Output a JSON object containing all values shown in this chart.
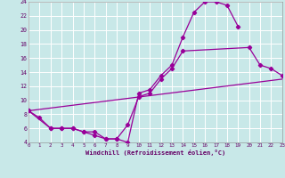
{
  "bg_color": "#c8e8e8",
  "grid_color": "#ffffff",
  "line_color": "#990099",
  "xlabel": "Windchill (Refroidissement éolien,°C)",
  "xlim": [
    0,
    23
  ],
  "ylim": [
    4,
    24
  ],
  "xticks": [
    0,
    1,
    2,
    3,
    4,
    5,
    6,
    7,
    8,
    9,
    10,
    11,
    12,
    13,
    14,
    15,
    16,
    17,
    18,
    19,
    20,
    21,
    22,
    23
  ],
  "yticks": [
    4,
    6,
    8,
    10,
    12,
    14,
    16,
    18,
    20,
    22,
    24
  ],
  "curve1_x": [
    0,
    1,
    2,
    3,
    4,
    5,
    6,
    7,
    8,
    9,
    10,
    11,
    12,
    13,
    14,
    15,
    16,
    17,
    18,
    19
  ],
  "curve1_y": [
    8.5,
    7.5,
    6.0,
    6.0,
    6.0,
    5.5,
    5.0,
    4.5,
    4.5,
    4.0,
    11.0,
    11.5,
    13.5,
    15.0,
    19.0,
    22.5,
    24.0,
    24.0,
    23.5,
    20.5
  ],
  "curve2_x": [
    0,
    2,
    3,
    4,
    5,
    6,
    7,
    8,
    9,
    10,
    11,
    12,
    13,
    14,
    20,
    21,
    22,
    23
  ],
  "curve2_y": [
    8.5,
    6.0,
    6.0,
    6.0,
    5.5,
    5.5,
    4.5,
    4.5,
    6.5,
    10.5,
    11.0,
    13.0,
    14.5,
    17.0,
    17.5,
    15.0,
    14.5,
    13.5
  ],
  "curve3_x": [
    0,
    23
  ],
  "curve3_y": [
    8.5,
    13.0
  ],
  "lw": 0.9,
  "ms": 2.2
}
